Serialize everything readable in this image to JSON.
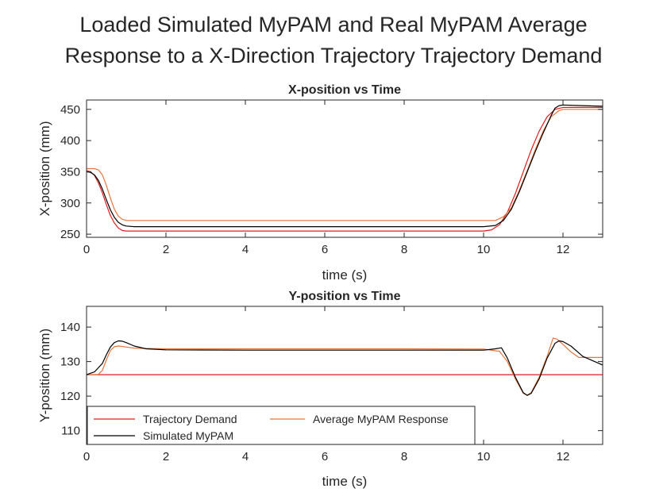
{
  "figure": {
    "title_line1": "Loaded Simulated MyPAM and Real MyPAM Average",
    "title_line2": "Response to a X-Direction Trajectory Trajectory Demand"
  },
  "chart_data": [
    {
      "type": "line",
      "title": "X-position vs Time",
      "xlabel": "time (s)",
      "ylabel": "X-position (mm)",
      "xlim": [
        0,
        13
      ],
      "ylim": [
        245,
        465
      ],
      "xticks": [
        0,
        2,
        4,
        6,
        8,
        10,
        12
      ],
      "yticks": [
        250,
        300,
        350,
        400,
        450
      ],
      "grid": false,
      "series": [
        {
          "name": "Trajectory Demand",
          "color": "#e31a1c",
          "x": [
            0,
            0.1,
            0.2,
            0.3,
            0.4,
            0.5,
            0.6,
            0.7,
            0.8,
            0.9,
            1.0,
            1.5,
            2,
            4,
            6,
            8,
            10,
            10.2,
            10.4,
            10.6,
            10.8,
            11.0,
            11.2,
            11.4,
            11.6,
            11.8,
            12.0,
            12.5,
            13
          ],
          "y": [
            352,
            350,
            344,
            332,
            316,
            297,
            280,
            268,
            260,
            256,
            255,
            255,
            255,
            255,
            255,
            255,
            255,
            257,
            265,
            285,
            315,
            350,
            385,
            415,
            438,
            450,
            453,
            453,
            453
          ]
        },
        {
          "name": "Average MyPAM Response",
          "color": "#e8743b",
          "x": [
            0,
            0.2,
            0.3,
            0.4,
            0.5,
            0.6,
            0.7,
            0.8,
            0.9,
            1.0,
            1.5,
            2,
            4,
            6,
            8,
            10,
            10.3,
            10.5,
            10.7,
            10.9,
            11.1,
            11.3,
            11.5,
            11.7,
            11.9,
            12.0,
            12.5,
            13
          ],
          "y": [
            355,
            355,
            353,
            345,
            328,
            308,
            290,
            279,
            274,
            272,
            272,
            272,
            272,
            272,
            272,
            272,
            272,
            278,
            292,
            320,
            352,
            385,
            415,
            438,
            448,
            450,
            450,
            450
          ]
        },
        {
          "name": "Simulated MyPAM",
          "color": "#000000",
          "x": [
            0,
            0.1,
            0.2,
            0.3,
            0.4,
            0.5,
            0.6,
            0.7,
            0.8,
            0.9,
            1.0,
            1.2,
            1.5,
            2,
            4,
            6,
            8,
            10,
            10.3,
            10.5,
            10.7,
            10.9,
            11.1,
            11.3,
            11.5,
            11.7,
            11.8,
            11.9,
            12.0,
            12.5,
            13
          ],
          "y": [
            350,
            349,
            345,
            336,
            322,
            305,
            289,
            277,
            269,
            265,
            263,
            262,
            262,
            262,
            262,
            262,
            262,
            262,
            264,
            272,
            290,
            318,
            350,
            382,
            412,
            440,
            452,
            456,
            457,
            456,
            455
          ]
        }
      ]
    },
    {
      "type": "line",
      "title": "Y-position vs Time",
      "xlabel": "time (s)",
      "ylabel": "Y-position (mm)",
      "xlim": [
        0,
        13
      ],
      "ylim": [
        106,
        146
      ],
      "xticks": [
        0,
        2,
        4,
        6,
        8,
        10,
        12
      ],
      "yticks": [
        110,
        120,
        130,
        140
      ],
      "grid": false,
      "legend_position": "bottom-left",
      "series": [
        {
          "name": "Trajectory Demand",
          "color": "#e31a1c",
          "x": [
            0,
            13
          ],
          "y": [
            126.2,
            126.2
          ]
        },
        {
          "name": "Average MyPAM Response",
          "color": "#e8743b",
          "x": [
            0,
            0.3,
            0.4,
            0.5,
            0.6,
            0.7,
            0.8,
            0.9,
            1.0,
            1.2,
            1.5,
            2,
            4,
            6,
            8,
            10,
            10.4,
            10.6,
            10.8,
            11.0,
            11.1,
            11.2,
            11.4,
            11.6,
            11.75,
            11.85,
            12.0,
            12.2,
            12.4,
            13
          ],
          "y": [
            126.2,
            126.3,
            127.5,
            130.5,
            133.2,
            134.3,
            134.5,
            134.4,
            134.2,
            133.9,
            133.8,
            133.7,
            133.7,
            133.7,
            133.7,
            133.6,
            133.0,
            130.0,
            125.0,
            120.8,
            120.3,
            121.0,
            125.5,
            131.5,
            136.8,
            136.5,
            135.0,
            132.8,
            131.2,
            131.2
          ]
        },
        {
          "name": "Simulated MyPAM",
          "color": "#000000",
          "x": [
            0,
            0.2,
            0.4,
            0.5,
            0.6,
            0.7,
            0.8,
            0.9,
            1.0,
            1.2,
            1.5,
            2,
            4,
            6,
            8,
            10,
            10.3,
            10.45,
            10.6,
            10.8,
            11.0,
            11.1,
            11.2,
            11.4,
            11.6,
            11.8,
            11.9,
            12.0,
            12.2,
            12.5,
            13
          ],
          "y": [
            126.2,
            127.0,
            129.5,
            132.0,
            134.2,
            135.5,
            136.0,
            135.9,
            135.5,
            134.5,
            133.7,
            133.4,
            133.3,
            133.3,
            133.3,
            133.3,
            133.7,
            134.0,
            131.0,
            125.5,
            121.0,
            120.2,
            120.8,
            125.0,
            131.0,
            135.3,
            136.0,
            135.8,
            134.5,
            131.5,
            129.0
          ]
        }
      ],
      "legend": [
        {
          "label": "Trajectory Demand",
          "color": "#e31a1c"
        },
        {
          "label": "Average MyPAM Response",
          "color": "#e8743b"
        },
        {
          "label": "Simulated MyPAM",
          "color": "#000000"
        }
      ]
    }
  ]
}
